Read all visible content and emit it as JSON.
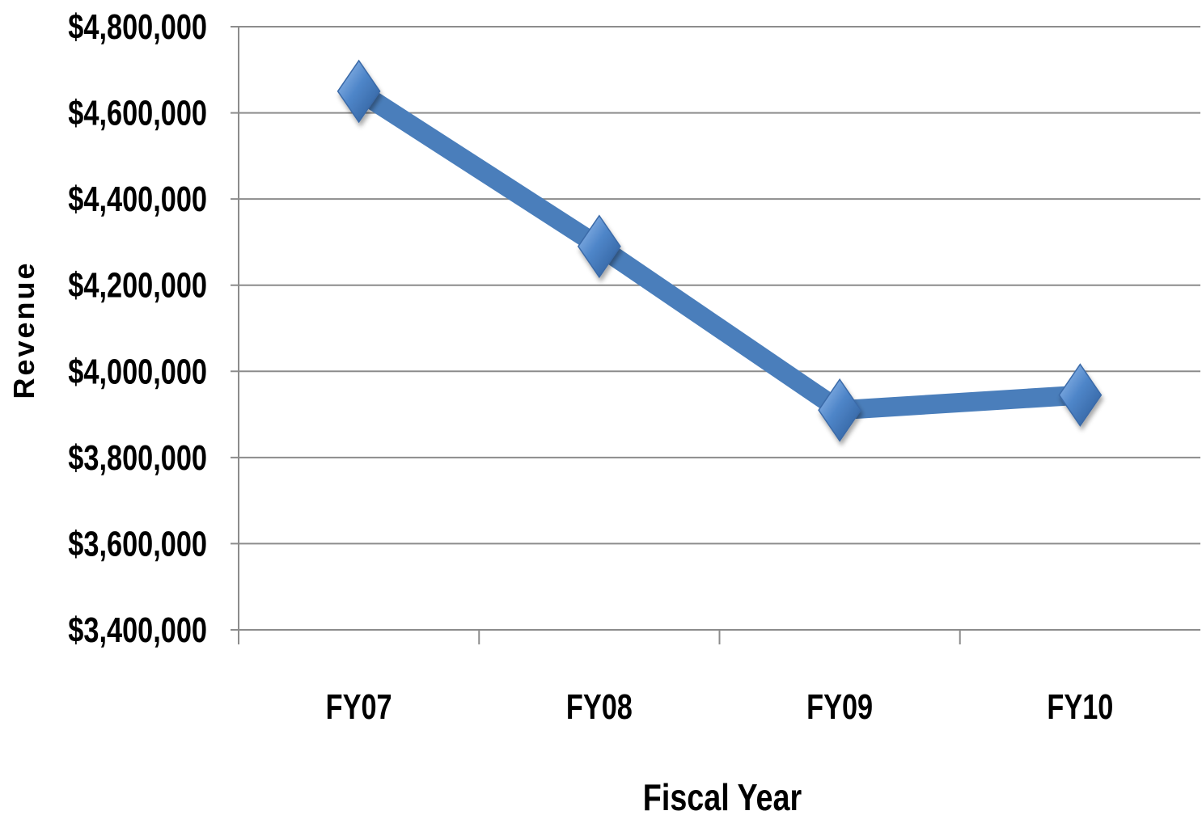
{
  "chart_data": {
    "type": "line",
    "title": "",
    "xlabel": "Fiscal Year",
    "ylabel": "Revenue",
    "categories": [
      "FY07",
      "FY08",
      "FY09",
      "FY10"
    ],
    "series": [
      {
        "values": [
          4650000,
          4290000,
          3910000,
          3945000
        ],
        "color": "#4a7ebb",
        "marker": "diamond"
      }
    ],
    "ylim": [
      3400000,
      4800000
    ],
    "yticks": [
      3400000,
      3600000,
      3800000,
      4000000,
      4200000,
      4400000,
      4600000,
      4800000
    ],
    "ytick_labels": [
      "$3,400,000",
      "$3,600,000",
      "$3,800,000",
      "$4,000,000",
      "$4,200,000",
      "$4,400,000",
      "$4,600,000",
      "$4,800,000"
    ],
    "grid": true,
    "legend": "none",
    "colors": {
      "gridline": "#8c8c8c",
      "axis": "#8c8c8c"
    }
  }
}
